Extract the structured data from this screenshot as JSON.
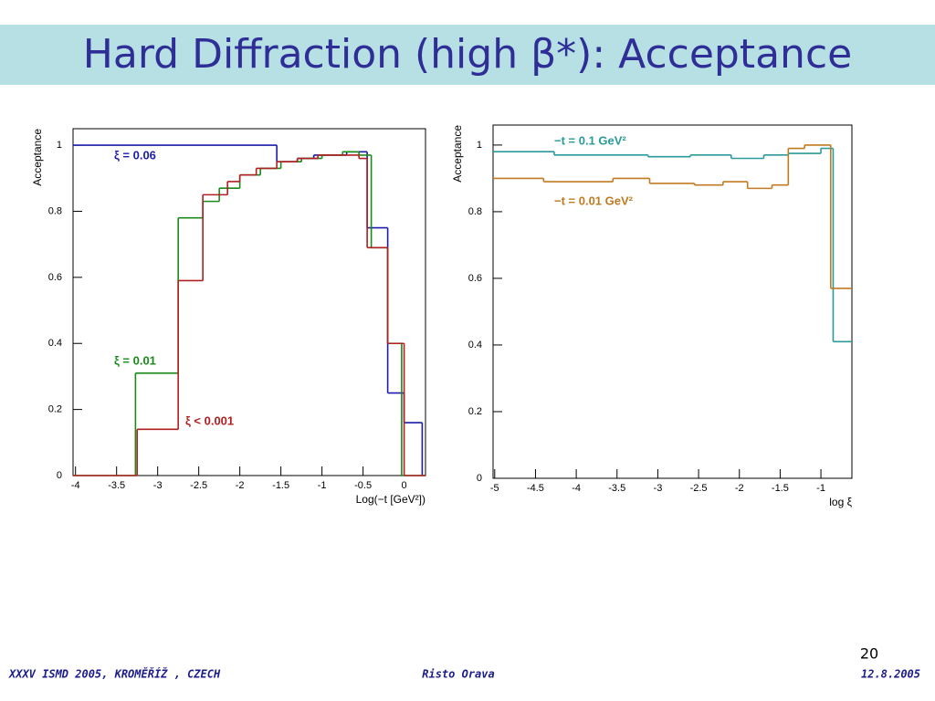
{
  "slide": {
    "title": "Hard Diffraction (high β*): Acceptance",
    "page_number": "20",
    "footer": {
      "left": "XXXV ISMD 2005, KROMĚŘÍŽ , CZECH",
      "center": "Risto Orava",
      "right": "12.8.2005"
    }
  },
  "chart_data": [
    {
      "type": "histogram",
      "xlabel": "Log(−t [GeV²])",
      "ylabel": "Acceptance",
      "xlim": [
        -4.03,
        0.26
      ],
      "ylim": [
        0,
        1.05
      ],
      "xticks": [
        -4,
        -3.5,
        -3,
        -2.5,
        -2,
        -1.5,
        -1,
        -0.5,
        0
      ],
      "yticks": [
        0,
        0.2,
        0.4,
        0.6,
        0.8,
        1
      ],
      "series": [
        {
          "name": "ξ = 0.06",
          "color": "#1c1ca8",
          "bins": [
            -4.03,
            -1.55,
            -1.3,
            -1.1,
            -0.9,
            -0.7,
            -0.45,
            -0.2,
            0,
            0.22
          ],
          "values": [
            1.0,
            0.95,
            0.96,
            0.97,
            0.97,
            0.98,
            0.75,
            0.25,
            0.16
          ]
        },
        {
          "name": "ξ = 0.01",
          "color": "#1a8a1a",
          "bins": [
            -4.03,
            -3.27,
            -2.75,
            -2.45,
            -2.25,
            -2.0,
            -1.75,
            -1.5,
            -1.25,
            -1.0,
            -0.75,
            -0.55,
            -0.4,
            -0.2,
            -0.03,
            0.26
          ],
          "values": [
            0,
            0.31,
            0.78,
            0.83,
            0.87,
            0.91,
            0.93,
            0.95,
            0.96,
            0.97,
            0.98,
            0.97,
            0.69,
            0.4,
            0
          ]
        },
        {
          "name": "ξ < 0.001",
          "color": "#b02020",
          "bins": [
            -4.03,
            -3.25,
            -2.75,
            -2.45,
            -2.15,
            -2.0,
            -1.8,
            -1.55,
            -1.3,
            -1.05,
            -0.75,
            -0.55,
            -0.45,
            -0.2,
            0,
            0.26
          ],
          "values": [
            0,
            0.14,
            0.59,
            0.85,
            0.89,
            0.91,
            0.93,
            0.95,
            0.96,
            0.97,
            0.97,
            0.96,
            0.69,
            0.4,
            0
          ]
        }
      ]
    },
    {
      "type": "histogram",
      "xlabel": "log ξ",
      "ylabel": "Acceptance",
      "xlim": [
        -5.02,
        -0.62
      ],
      "ylim": [
        0,
        1.06
      ],
      "xticks": [
        -5,
        -4.5,
        -4,
        -3.5,
        -3,
        -2.5,
        -2,
        -1.5,
        -1
      ],
      "yticks": [
        0,
        0.2,
        0.4,
        0.6,
        0.8,
        1
      ],
      "series": [
        {
          "name": "−t = 0.1 GeV²",
          "color": "#2a9a9a",
          "bins": [
            -5.02,
            -4.27,
            -3.12,
            -2.6,
            -2.1,
            -1.7,
            -1.4,
            -1.0,
            -0.85,
            -0.62
          ],
          "values": [
            0.98,
            0.97,
            0.965,
            0.97,
            0.96,
            0.97,
            0.975,
            0.99,
            0.41
          ]
        },
        {
          "name": "−t = 0.01 GeV²",
          "color": "#c07a20",
          "bins": [
            -5.02,
            -4.4,
            -3.55,
            -3.1,
            -2.55,
            -2.2,
            -1.9,
            -1.6,
            -1.4,
            -1.2,
            -0.88,
            -0.62
          ],
          "values": [
            0.9,
            0.89,
            0.9,
            0.885,
            0.88,
            0.89,
            0.87,
            0.88,
            0.99,
            1.0,
            0.57
          ]
        }
      ]
    }
  ]
}
